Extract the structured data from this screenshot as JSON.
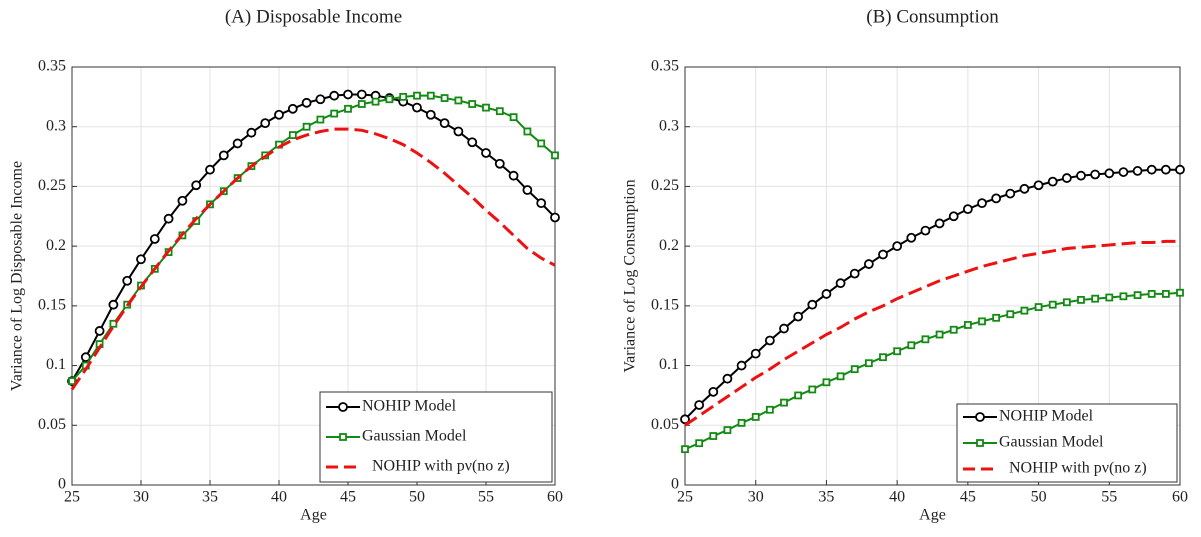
{
  "chart_data": [
    {
      "type": "line",
      "title": "(A) Disposable Income",
      "xlabel": "Age",
      "ylabel": "Variance of Log Disposable Income",
      "x": [
        25,
        26,
        27,
        28,
        29,
        30,
        31,
        32,
        33,
        34,
        35,
        36,
        37,
        38,
        39,
        40,
        41,
        42,
        43,
        44,
        45,
        46,
        47,
        48,
        49,
        50,
        51,
        52,
        53,
        54,
        55,
        56,
        57,
        58,
        59,
        60
      ],
      "xlim": [
        25,
        60
      ],
      "xticks": [
        25,
        30,
        35,
        40,
        45,
        50,
        55,
        60
      ],
      "ylim": [
        0,
        0.35
      ],
      "yticks": [
        0,
        0.05,
        0.1,
        0.15,
        0.2,
        0.25,
        0.3,
        0.35
      ],
      "grid": true,
      "legend": "lower right",
      "series": [
        {
          "name": "NOHIP Model",
          "color": "#000000",
          "marker": "circle",
          "linestyle": "solid",
          "values": [
            0.087,
            0.107,
            0.129,
            0.151,
            0.171,
            0.189,
            0.206,
            0.223,
            0.238,
            0.251,
            0.264,
            0.276,
            0.286,
            0.295,
            0.303,
            0.31,
            0.315,
            0.32,
            0.323,
            0.326,
            0.327,
            0.327,
            0.326,
            0.324,
            0.321,
            0.316,
            0.31,
            0.303,
            0.296,
            0.287,
            0.278,
            0.269,
            0.259,
            0.247,
            0.236,
            0.224
          ]
        },
        {
          "name": "Gaussian Model",
          "color": "#138a13",
          "marker": "square",
          "linestyle": "solid",
          "values": [
            0.087,
            0.1,
            0.118,
            0.135,
            0.151,
            0.167,
            0.181,
            0.195,
            0.209,
            0.221,
            0.235,
            0.246,
            0.257,
            0.267,
            0.276,
            0.285,
            0.293,
            0.3,
            0.306,
            0.311,
            0.315,
            0.319,
            0.321,
            0.323,
            0.325,
            0.326,
            0.326,
            0.324,
            0.322,
            0.319,
            0.316,
            0.313,
            0.308,
            0.296,
            0.286,
            0.276
          ]
        },
        {
          "name": "NOHIP with pν(no z)",
          "color": "#ee1111",
          "marker": "none",
          "linestyle": "dashed",
          "values": [
            0.08,
            0.097,
            0.115,
            0.133,
            0.15,
            0.166,
            0.181,
            0.196,
            0.21,
            0.223,
            0.235,
            0.246,
            0.257,
            0.267,
            0.275,
            0.283,
            0.289,
            0.293,
            0.296,
            0.298,
            0.298,
            0.297,
            0.294,
            0.29,
            0.285,
            0.278,
            0.27,
            0.261,
            0.251,
            0.241,
            0.23,
            0.22,
            0.209,
            0.198,
            0.19,
            0.184
          ]
        }
      ]
    },
    {
      "type": "line",
      "title": "(B) Consumption",
      "xlabel": "Age",
      "ylabel": "Variance of Log Consumption",
      "x": [
        25,
        26,
        27,
        28,
        29,
        30,
        31,
        32,
        33,
        34,
        35,
        36,
        37,
        38,
        39,
        40,
        41,
        42,
        43,
        44,
        45,
        46,
        47,
        48,
        49,
        50,
        51,
        52,
        53,
        54,
        55,
        56,
        57,
        58,
        59,
        60
      ],
      "xlim": [
        25,
        60
      ],
      "xticks": [
        25,
        30,
        35,
        40,
        45,
        50,
        55,
        60
      ],
      "ylim": [
        0,
        0.35
      ],
      "yticks": [
        0,
        0.05,
        0.1,
        0.15,
        0.2,
        0.25,
        0.3,
        0.35
      ],
      "grid": true,
      "legend": "lower right",
      "series": [
        {
          "name": "NOHIP Model",
          "color": "#000000",
          "marker": "circle",
          "linestyle": "solid",
          "values": [
            0.055,
            0.067,
            0.078,
            0.089,
            0.1,
            0.11,
            0.121,
            0.131,
            0.141,
            0.151,
            0.16,
            0.169,
            0.177,
            0.185,
            0.193,
            0.2,
            0.207,
            0.213,
            0.219,
            0.225,
            0.231,
            0.236,
            0.24,
            0.244,
            0.248,
            0.251,
            0.254,
            0.257,
            0.259,
            0.26,
            0.261,
            0.262,
            0.263,
            0.264,
            0.264,
            0.264
          ]
        },
        {
          "name": "Gaussian Model",
          "color": "#138a13",
          "marker": "square",
          "linestyle": "solid",
          "values": [
            0.03,
            0.035,
            0.041,
            0.046,
            0.052,
            0.057,
            0.063,
            0.069,
            0.075,
            0.08,
            0.086,
            0.091,
            0.097,
            0.102,
            0.107,
            0.112,
            0.117,
            0.122,
            0.126,
            0.13,
            0.134,
            0.137,
            0.14,
            0.143,
            0.146,
            0.149,
            0.151,
            0.153,
            0.155,
            0.156,
            0.157,
            0.158,
            0.159,
            0.16,
            0.16,
            0.161
          ]
        },
        {
          "name": "NOHIP with pν(no z)",
          "color": "#ee1111",
          "marker": "none",
          "linestyle": "dashed",
          "values": [
            0.05,
            0.058,
            0.066,
            0.074,
            0.082,
            0.09,
            0.097,
            0.105,
            0.112,
            0.119,
            0.126,
            0.132,
            0.139,
            0.145,
            0.15,
            0.156,
            0.161,
            0.166,
            0.171,
            0.175,
            0.179,
            0.183,
            0.186,
            0.189,
            0.192,
            0.194,
            0.196,
            0.198,
            0.199,
            0.2,
            0.201,
            0.202,
            0.203,
            0.203,
            0.204,
            0.204
          ]
        }
      ]
    }
  ]
}
